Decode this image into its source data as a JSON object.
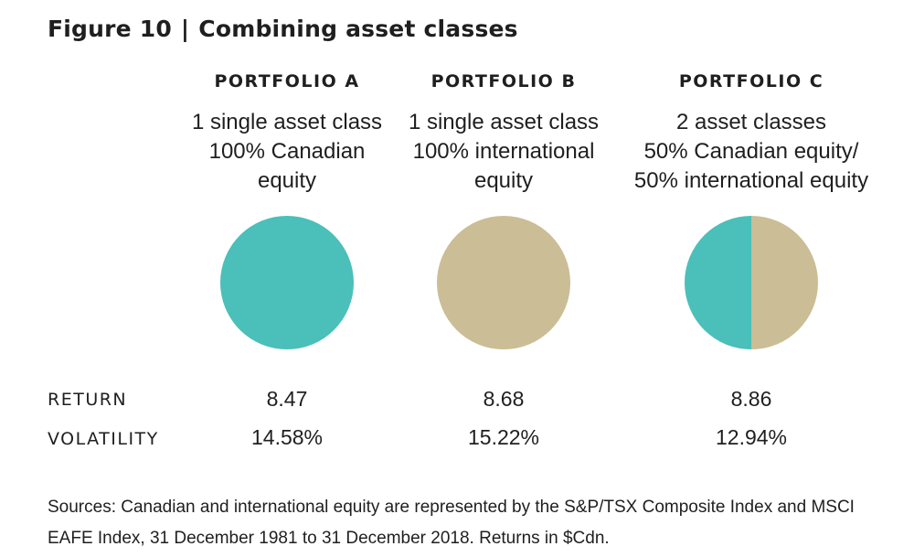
{
  "header": {
    "figure_label": "Figure 10",
    "separator": "|",
    "title": "Combining asset classes"
  },
  "colors": {
    "canadian_equity": "#4bbfb9",
    "international_equity": "#cbbd95"
  },
  "row_labels": {
    "return": "RETURN",
    "volatility": "VOLATILITY"
  },
  "chart_data": [
    {
      "type": "pie",
      "title": "PORTFOLIO A",
      "description": [
        "1 single asset class",
        "100% Canadian",
        "equity"
      ],
      "slices": [
        {
          "label": "Canadian equity",
          "value": 100,
          "color": "#4bbfb9"
        }
      ],
      "return": "8.47",
      "volatility": "14.58%"
    },
    {
      "type": "pie",
      "title": "PORTFOLIO B",
      "description": [
        "1 single asset class",
        "100% international",
        "equity"
      ],
      "slices": [
        {
          "label": "international equity",
          "value": 100,
          "color": "#cbbd95"
        }
      ],
      "return": "8.68",
      "volatility": "15.22%"
    },
    {
      "type": "pie",
      "title": "PORTFOLIO C",
      "description": [
        "2 asset classes",
        "50% Canadian equity/",
        "50% international equity"
      ],
      "slices": [
        {
          "label": "Canadian equity",
          "value": 50,
          "color": "#4bbfb9"
        },
        {
          "label": "international equity",
          "value": 50,
          "color": "#cbbd95"
        }
      ],
      "return": "8.86",
      "volatility": "12.94%"
    }
  ],
  "sources": [
    "Sources: Canadian and international equity are represented by the S&P/TSX Composite Index and MSCI",
    "EAFE Index, 31 December 1981 to 31 December 2018. Returns in $Cdn."
  ]
}
